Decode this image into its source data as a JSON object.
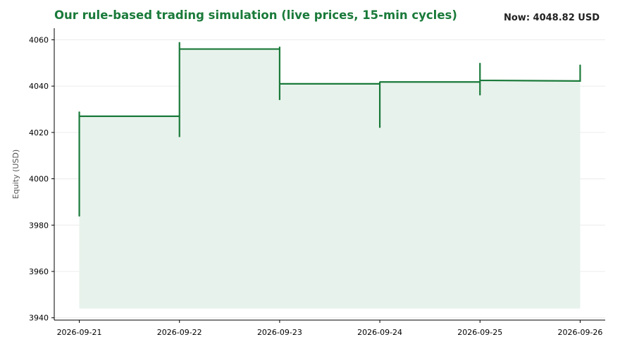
{
  "header": {
    "title": "Our rule-based trading simulation (live prices, 15-min cycles)",
    "now_label": "Now: 4048.82 USD"
  },
  "colors": {
    "line": "#1a7a3a",
    "fill": "#e8f2ec",
    "grid": "#ececec",
    "axis": "#000000"
  },
  "chart_data": {
    "type": "line",
    "title": "Our rule-based trading simulation (live prices, 15-min cycles)",
    "xlabel": "",
    "ylabel": "Equity (USD)",
    "ylim": [
      3939,
      4065
    ],
    "xlim": [
      "2026-09-20T18:00",
      "2026-09-26T06:00"
    ],
    "yticks": [
      3940,
      3960,
      3980,
      4000,
      4020,
      4040,
      4060
    ],
    "xticks": [
      "2026-09-21",
      "2026-09-22",
      "2026-09-23",
      "2026-09-24",
      "2026-09-25",
      "2026-09-26"
    ],
    "grid": "horizontal",
    "fill_baseline": 3944,
    "series": [
      {
        "points": [
          [
            "2026-09-21T00:00",
            3984
          ],
          [
            "2026-09-21T00:00",
            4029
          ],
          [
            "2026-09-21T00:00",
            4027
          ],
          [
            "2026-09-22T00:00",
            4027
          ],
          [
            "2026-09-22T00:00",
            4018
          ],
          [
            "2026-09-22T00:00",
            4059
          ],
          [
            "2026-09-22T00:00",
            4056
          ],
          [
            "2026-09-23T00:00",
            4056
          ],
          [
            "2026-09-23T00:00",
            4057
          ],
          [
            "2026-09-23T00:00",
            4034
          ],
          [
            "2026-09-23T00:00",
            4041
          ],
          [
            "2026-09-24T00:00",
            4041
          ],
          [
            "2026-09-24T00:00",
            4022
          ],
          [
            "2026-09-24T00:00",
            4042
          ],
          [
            "2026-09-24T00:00",
            4041.8
          ],
          [
            "2026-09-25T00:00",
            4041.8
          ],
          [
            "2026-09-25T00:00",
            4036
          ],
          [
            "2026-09-25T00:00",
            4050
          ],
          [
            "2026-09-25T00:00",
            4042.5
          ],
          [
            "2026-09-26T00:00",
            4042.2
          ],
          [
            "2026-09-26T00:00",
            4049
          ]
        ]
      }
    ]
  }
}
